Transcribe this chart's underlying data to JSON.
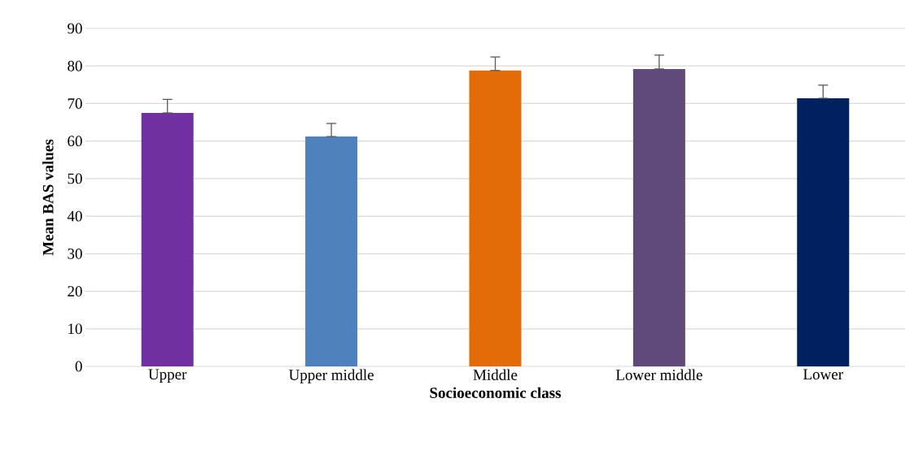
{
  "chart_data": {
    "type": "bar",
    "xlabel": "Socioeconomic class",
    "ylabel": "Mean BAS values",
    "categories": [
      "Upper",
      "Upper middle",
      "Middle",
      "Lower middle",
      "Lower"
    ],
    "values": [
      67.5,
      61.2,
      78.8,
      79.2,
      71.4
    ],
    "errors": [
      [
        67.5,
        71.1
      ],
      [
        61.2,
        64.7
      ],
      [
        78.8,
        82.4
      ],
      [
        79.2,
        82.9
      ],
      [
        71.4,
        74.9
      ]
    ],
    "colors": [
      "#7030a0",
      "#4f81bd",
      "#e36c09",
      "#604a7b",
      "#002060"
    ],
    "ylim": [
      0,
      90
    ],
    "yticks": [
      0,
      10,
      20,
      30,
      40,
      50,
      60,
      70,
      80,
      90
    ],
    "grid": "y"
  }
}
